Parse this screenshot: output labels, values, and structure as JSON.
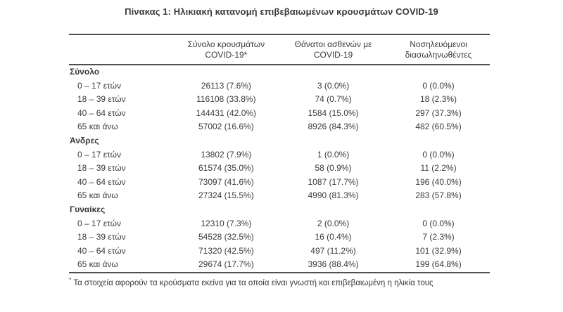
{
  "title": "Πίνακας 1: Ηλικιακή κατανομή επιβεβαιωμένων κρουσμάτων COVID-19",
  "table": {
    "columns": [
      {
        "line1": "Σύνολο κρουσμάτων",
        "line2": "COVID-19*"
      },
      {
        "line1": "Θάνατοι ασθενών με",
        "line2": "COVID-19"
      },
      {
        "line1": "Νοσηλευόμενοι",
        "line2": "διασωληνωθέντες"
      }
    ],
    "sections": [
      {
        "label": "Σύνολο",
        "rows": [
          {
            "age": "0 – 17 ετών",
            "cases": "26113 (7.6%)",
            "deaths": "3 (0.0%)",
            "intubated": "0 (0.0%)"
          },
          {
            "age": "18 – 39 ετών",
            "cases": "116108 (33.8%)",
            "deaths": "74 (0.7%)",
            "intubated": "18 (2.3%)"
          },
          {
            "age": "40 – 64 ετών",
            "cases": "144431 (42.0%)",
            "deaths": "1584 (15.0%)",
            "intubated": "297 (37.3%)"
          },
          {
            "age": "65 και άνω",
            "cases": "57002 (16.6%)",
            "deaths": "8926 (84.3%)",
            "intubated": "482 (60.5%)"
          }
        ]
      },
      {
        "label": "Άνδρες",
        "rows": [
          {
            "age": "0 – 17 ετών",
            "cases": "13802 (7.9%)",
            "deaths": "1 (0.0%)",
            "intubated": "0 (0.0%)"
          },
          {
            "age": "18 – 39 ετών",
            "cases": "61574 (35.0%)",
            "deaths": "58 (0.9%)",
            "intubated": "11 (2.2%)"
          },
          {
            "age": "40 – 64 ετών",
            "cases": "73097 (41.6%)",
            "deaths": "1087 (17.7%)",
            "intubated": "196 (40.0%)"
          },
          {
            "age": "65 και άνω",
            "cases": "27324 (15.5%)",
            "deaths": "4990 (81.3%)",
            "intubated": "283 (57.8%)"
          }
        ]
      },
      {
        "label": "Γυναίκες",
        "rows": [
          {
            "age": "0 – 17 ετών",
            "cases": "12310 (7.3%)",
            "deaths": "2 (0.0%)",
            "intubated": "0 (0.0%)"
          },
          {
            "age": "18 – 39 ετών",
            "cases": "54528 (32.5%)",
            "deaths": "16 (0.4%)",
            "intubated": "7 (2.3%)"
          },
          {
            "age": "40 – 64 ετών",
            "cases": "71320 (42.5%)",
            "deaths": "497 (11.2%)",
            "intubated": "101 (32.9%)"
          },
          {
            "age": "65 και άνω",
            "cases": "29674 (17.7%)",
            "deaths": "3936 (88.4%)",
            "intubated": "199 (64.8%)"
          }
        ]
      }
    ],
    "footnote_marker": "*",
    "footnote": "Τα στοιχεία αφορούν τα κρούσματα εκείνα για τα οποία είναι γνωστή και επιβεβαιωμένη η ηλικία τους"
  },
  "colors": {
    "text": "#3a3a3a",
    "rule": "#4f4f4f",
    "background": "#ffffff"
  }
}
